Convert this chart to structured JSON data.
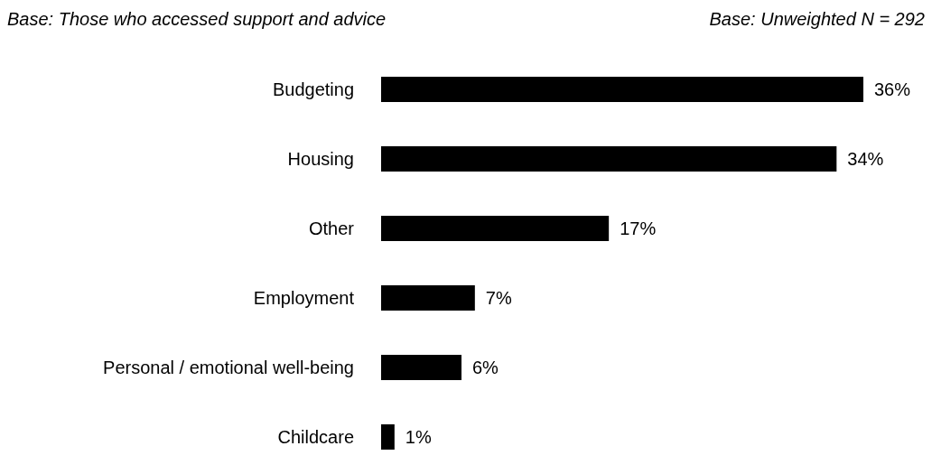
{
  "chart_data": {
    "type": "bar",
    "orientation": "horizontal",
    "annotations": [
      "Base: Those who accessed support and advice",
      "Base: Unweighted N = 292"
    ],
    "categories": [
      "Budgeting",
      "Housing",
      "Other",
      "Employment",
      "Personal / emotional well-being",
      "Childcare"
    ],
    "values": [
      36,
      34,
      17,
      7,
      6,
      1
    ],
    "value_labels": [
      "36%",
      "34%",
      "17%",
      "7%",
      "6%",
      "1%"
    ],
    "color": "#000000"
  }
}
